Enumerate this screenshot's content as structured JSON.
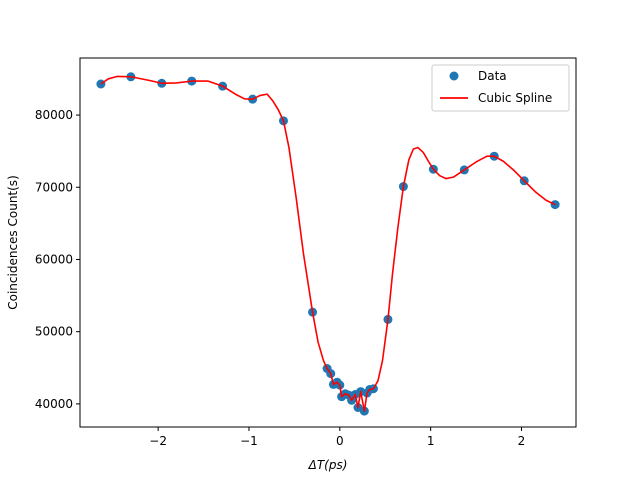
{
  "chart_data": {
    "type": "scatter",
    "xlabel": "ΔT(ps)",
    "ylabel": "Coincidences Count(s)",
    "xlim": [
      -2.86,
      2.6
    ],
    "ylim": [
      36800,
      87900
    ],
    "xticks": [
      -2,
      -1,
      0,
      1,
      2
    ],
    "xtick_labels": [
      "−2",
      "−1",
      "0",
      "1",
      "2"
    ],
    "yticks": [
      40000,
      50000,
      60000,
      70000,
      80000
    ],
    "ytick_labels": [
      "40000",
      "50000",
      "60000",
      "70000",
      "80000"
    ],
    "grid": false,
    "legend_position": "upper right",
    "series": [
      {
        "name": "Data",
        "kind": "scatter",
        "color": "#1f77b4",
        "points": [
          [
            -2.63,
            84300
          ],
          [
            -2.3,
            85300
          ],
          [
            -1.96,
            84400
          ],
          [
            -1.63,
            84700
          ],
          [
            -1.29,
            84000
          ],
          [
            -0.96,
            82200
          ],
          [
            -0.62,
            79200
          ],
          [
            -0.3,
            52700
          ],
          [
            -0.14,
            44900
          ],
          [
            -0.1,
            44200
          ],
          [
            -0.07,
            42700
          ],
          [
            -0.03,
            43000
          ],
          [
            0.0,
            42600
          ],
          [
            0.02,
            41000
          ],
          [
            0.06,
            41400
          ],
          [
            0.1,
            41200
          ],
          [
            0.13,
            40500
          ],
          [
            0.17,
            41300
          ],
          [
            0.2,
            39500
          ],
          [
            0.23,
            41700
          ],
          [
            0.27,
            39000
          ],
          [
            0.3,
            41500
          ],
          [
            0.33,
            42000
          ],
          [
            0.37,
            42100
          ],
          [
            0.53,
            51700
          ],
          [
            0.7,
            70100
          ],
          [
            1.03,
            72500
          ],
          [
            1.37,
            72400
          ],
          [
            1.7,
            74300
          ],
          [
            2.03,
            70900
          ],
          [
            2.37,
            67600
          ]
        ]
      },
      {
        "name": "Cubic Spline",
        "kind": "line",
        "color": "#ff0000",
        "points": [
          [
            -2.63,
            84300
          ],
          [
            -2.55,
            85000
          ],
          [
            -2.45,
            85350
          ],
          [
            -2.3,
            85300
          ],
          [
            -2.1,
            84800
          ],
          [
            -1.96,
            84400
          ],
          [
            -1.8,
            84450
          ],
          [
            -1.63,
            84700
          ],
          [
            -1.45,
            84700
          ],
          [
            -1.29,
            84000
          ],
          [
            -1.15,
            82900
          ],
          [
            -1.05,
            82250
          ],
          [
            -0.96,
            82200
          ],
          [
            -0.88,
            82700
          ],
          [
            -0.8,
            82900
          ],
          [
            -0.74,
            82000
          ],
          [
            -0.68,
            80800
          ],
          [
            -0.62,
            79200
          ],
          [
            -0.56,
            75500
          ],
          [
            -0.48,
            68500
          ],
          [
            -0.4,
            60800
          ],
          [
            -0.3,
            52700
          ],
          [
            -0.24,
            48600
          ],
          [
            -0.18,
            46000
          ],
          [
            -0.14,
            44900
          ],
          [
            -0.1,
            44200
          ],
          [
            -0.07,
            42700
          ],
          [
            -0.03,
            43000
          ],
          [
            0.0,
            42600
          ],
          [
            0.02,
            41000
          ],
          [
            0.06,
            41400
          ],
          [
            0.1,
            41200
          ],
          [
            0.13,
            40500
          ],
          [
            0.17,
            41300
          ],
          [
            0.2,
            39500
          ],
          [
            0.23,
            41700
          ],
          [
            0.27,
            39000
          ],
          [
            0.3,
            41500
          ],
          [
            0.33,
            42000
          ],
          [
            0.37,
            42100
          ],
          [
            0.42,
            43200
          ],
          [
            0.47,
            46000
          ],
          [
            0.53,
            51700
          ],
          [
            0.58,
            58000
          ],
          [
            0.64,
            64500
          ],
          [
            0.7,
            70100
          ],
          [
            0.76,
            73800
          ],
          [
            0.81,
            75300
          ],
          [
            0.86,
            75500
          ],
          [
            0.92,
            74800
          ],
          [
            0.98,
            73500
          ],
          [
            1.03,
            72500
          ],
          [
            1.1,
            71600
          ],
          [
            1.17,
            71200
          ],
          [
            1.25,
            71400
          ],
          [
            1.37,
            72400
          ],
          [
            1.5,
            73500
          ],
          [
            1.62,
            74300
          ],
          [
            1.7,
            74300
          ],
          [
            1.8,
            73600
          ],
          [
            1.92,
            72300
          ],
          [
            2.03,
            70900
          ],
          [
            2.15,
            69400
          ],
          [
            2.27,
            68200
          ],
          [
            2.37,
            67600
          ]
        ]
      }
    ]
  }
}
